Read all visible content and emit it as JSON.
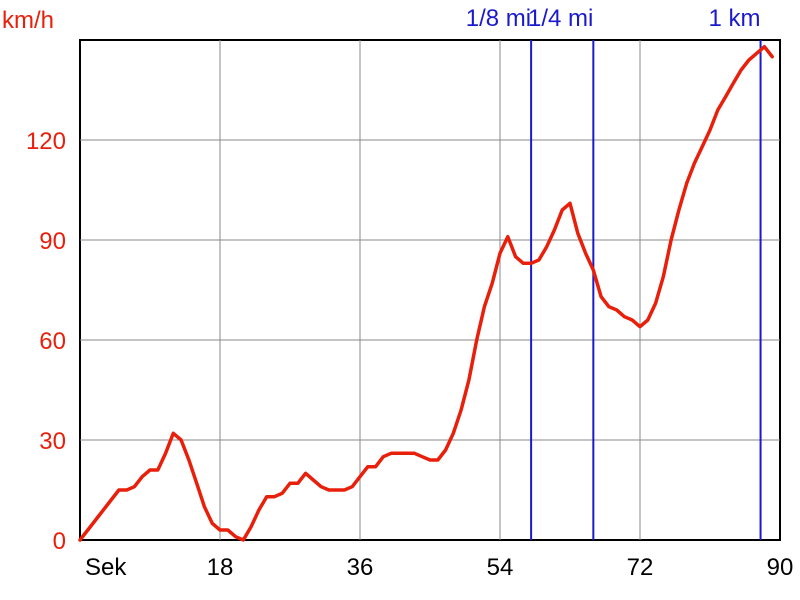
{
  "chart_data": {
    "type": "line",
    "ylabel": "km/h",
    "xlabel": "Sek",
    "xlim": [
      0,
      90
    ],
    "ylim": [
      0,
      150
    ],
    "xticks": [
      18,
      36,
      54,
      72,
      90
    ],
    "yticks": [
      0,
      30,
      60,
      90,
      120
    ],
    "grid": true,
    "colors": {
      "line": "#e8200b",
      "axis_text": "#e8200b",
      "markers": "#1a1acc",
      "grid": "#888888"
    },
    "markers": [
      {
        "label": "1/8 mi",
        "x": 58
      },
      {
        "label": "1/4 mi",
        "x": 66
      },
      {
        "label": "1 km",
        "x": 87.5
      }
    ],
    "series": [
      {
        "x": [
          0,
          2,
          4,
          5,
          6,
          7,
          8,
          9,
          10,
          11,
          12,
          13,
          14,
          15,
          16,
          17,
          18,
          19,
          20,
          21,
          22,
          23,
          24,
          25,
          26,
          27,
          28,
          29,
          30,
          31,
          32,
          33,
          34,
          35,
          36,
          37,
          38,
          39,
          40,
          41,
          42,
          43,
          44,
          45,
          46,
          47,
          48,
          49,
          50,
          51,
          52,
          53,
          54,
          55,
          56,
          57,
          58,
          59,
          60,
          61,
          62,
          63,
          64,
          65,
          66,
          67,
          68,
          69,
          70,
          71,
          72,
          73,
          74,
          75,
          76,
          77,
          78,
          79,
          80,
          81,
          82,
          83,
          84,
          85,
          86,
          87,
          88,
          89
        ],
        "values": [
          0,
          6,
          12,
          15,
          15,
          16,
          19,
          21,
          21,
          26,
          32,
          30,
          24,
          17,
          10,
          5,
          3,
          3,
          1,
          0,
          4,
          9,
          13,
          13,
          14,
          17,
          17,
          20,
          18,
          16,
          15,
          15,
          15,
          16,
          19,
          22,
          22,
          25,
          26,
          26,
          26,
          26,
          25,
          24,
          24,
          27,
          32,
          39,
          48,
          60,
          70,
          77,
          86,
          91,
          85,
          83,
          83,
          84,
          88,
          93,
          99,
          101,
          92,
          86,
          81,
          73,
          70,
          69,
          67,
          66,
          64,
          66,
          71,
          79,
          90,
          99,
          107,
          113,
          118,
          123,
          129,
          133,
          137,
          141,
          144,
          146,
          148,
          145
        ]
      }
    ]
  }
}
